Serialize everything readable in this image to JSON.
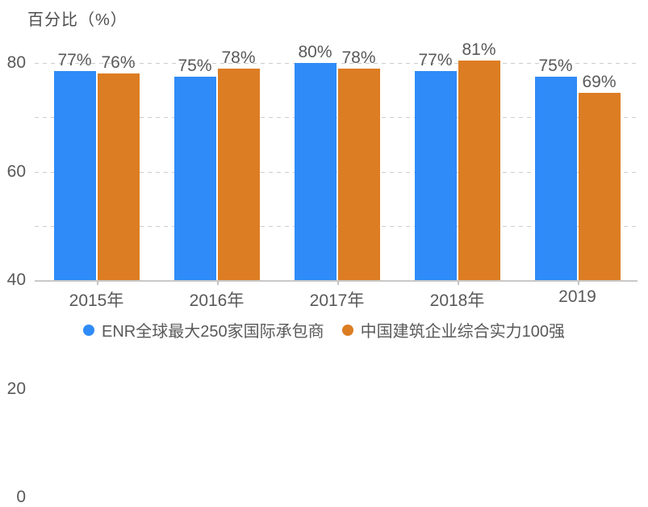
{
  "chart_data": {
    "type": "bar",
    "title": "百分比（%）",
    "categories": [
      "2015年",
      "2016年",
      "2017年",
      "2018年",
      "2019"
    ],
    "series": [
      {
        "name": "ENR全球最大250家国际承包商",
        "color": "#2F8BF7",
        "values": [
          77,
          75,
          80,
          77,
          75
        ],
        "labels": [
          "77%",
          "75%",
          "80%",
          "77%",
          "75%"
        ]
      },
      {
        "name": "中国建筑企业综合实力100强",
        "color": "#DC7D23",
        "values": [
          76,
          78,
          78,
          81,
          69
        ],
        "labels": [
          "76%",
          "78%",
          "78%",
          "81%",
          "69%"
        ]
      }
    ],
    "ylim": [
      0,
      80
    ],
    "yticks": [
      0,
      20,
      40,
      60,
      80
    ],
    "grid": true,
    "gridline_style": "dashed",
    "legend_position": "bottom-center",
    "text_color": "#595959",
    "axis_line_color": "#c9c9c9"
  }
}
